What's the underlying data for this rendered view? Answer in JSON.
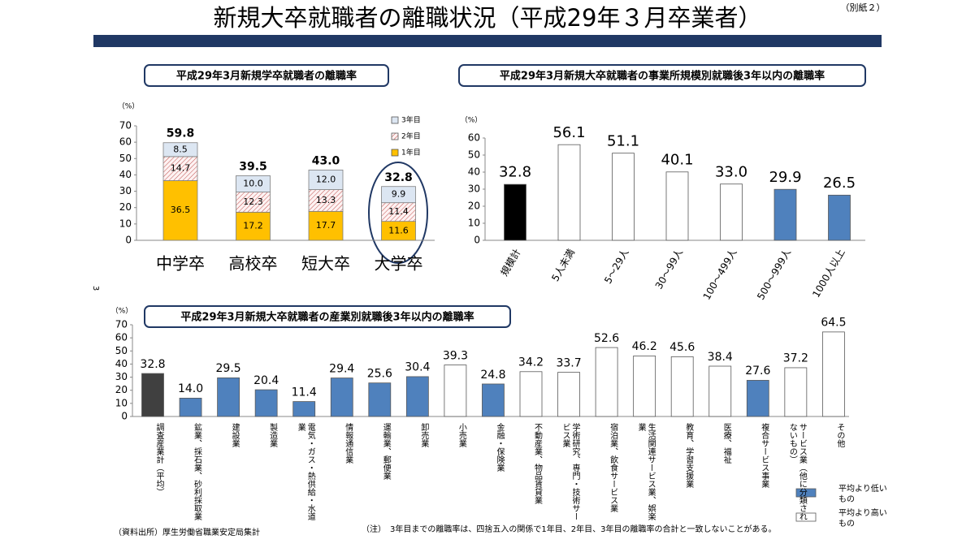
{
  "header": {
    "title": "新規大卒就職者の離職状況（平成29年３月卒業者）",
    "note": "（別紙２）",
    "page_number": "3"
  },
  "chart_data": [
    {
      "type": "stacked_bar",
      "title": "平成29年3月新規学卒就職者の離職率",
      "y_unit": "（%）",
      "categories": [
        "中学卒",
        "高校卒",
        "短大卒",
        "大学卒"
      ],
      "series": [
        {
          "name": "1年目",
          "color": "#ffc000",
          "values": [
            36.5,
            17.2,
            17.7,
            11.6
          ]
        },
        {
          "name": "2年目",
          "color": "#c0504d",
          "pattern": "hatch",
          "values": [
            14.7,
            12.3,
            13.3,
            11.4
          ]
        },
        {
          "name": "3年目",
          "color": "#dce6f2",
          "values": [
            8.5,
            10,
            12,
            9.9
          ],
          "value_labels": [
            "8.5",
            "10.0",
            "12.0",
            "9.9"
          ]
        }
      ],
      "totals": [
        59.8,
        39.5,
        43,
        32.8
      ],
      "total_labels": [
        "59.8",
        "39.5",
        "43.0",
        "32.8"
      ],
      "ylim": [
        0,
        70
      ],
      "yticks": [
        0,
        10,
        20,
        30,
        40,
        50,
        60,
        70
      ]
    },
    {
      "type": "bar",
      "title": "平成29年3月新規大卒就職者の事業所規模別就職後3年以内の離職率",
      "y_unit": "（%）",
      "categories": [
        "規模計",
        "5人未満",
        "5～29人",
        "30～99人",
        "100～499人",
        "500～999人",
        "1000人以上"
      ],
      "values": [
        32.8,
        56.1,
        51.1,
        40.1,
        33,
        29.9,
        26.5
      ],
      "value_labels": [
        "32.8",
        "56.1",
        "51.1",
        "40.1",
        "33.0",
        "29.9",
        "26.5"
      ],
      "colors": [
        "#000000",
        "#ffffff",
        "#ffffff",
        "#ffffff",
        "#ffffff",
        "#4f81bd",
        "#4f81bd"
      ],
      "ylim": [
        0,
        60
      ],
      "yticks": [
        0,
        10,
        20,
        30,
        40,
        50,
        60
      ]
    },
    {
      "type": "bar",
      "title": "平成29年3月新規大卒就職者の産業別就職後3年以内の離職率",
      "y_unit": "（%）",
      "categories": [
        "調査産業計（平均）",
        "鉱業、採石業、砂利採取業",
        "建設業",
        "製造業",
        "電気・ガス・熱供給・水道業",
        "情報通信業",
        "運輸業、郵便業",
        "卸売業",
        "小売業",
        "金融・保険業",
        "不動産業、物品賃貸業",
        "学術研究、専門・技術サービス業",
        "宿泊業、飲食サービス業",
        "生活関連サービス業、娯楽業",
        "教育、学習支援業",
        "医療、福祉",
        "複合サービス事業",
        "サービス業（他に分類されないもの）",
        "その他"
      ],
      "values": [
        32.8,
        14,
        29.5,
        20.4,
        11.4,
        29.4,
        25.6,
        30.4,
        39.3,
        24.8,
        34.2,
        33.7,
        52.6,
        46.2,
        45.6,
        38.4,
        27.6,
        37.2,
        64.5
      ],
      "value_labels": [
        "32.8",
        "14.0",
        "29.5",
        "20.4",
        "11.4",
        "29.4",
        "25.6",
        "30.4",
        "39.3",
        "24.8",
        "34.2",
        "33.7",
        "52.6",
        "46.2",
        "45.6",
        "38.4",
        "27.6",
        "37.2",
        "64.5"
      ],
      "colors": [
        "#404040",
        "#4f81bd",
        "#4f81bd",
        "#4f81bd",
        "#4f81bd",
        "#4f81bd",
        "#4f81bd",
        "#4f81bd",
        "#ffffff",
        "#4f81bd",
        "#ffffff",
        "#ffffff",
        "#ffffff",
        "#ffffff",
        "#ffffff",
        "#ffffff",
        "#4f81bd",
        "#ffffff",
        "#ffffff"
      ],
      "legend": [
        {
          "label": "平均より低いもの",
          "color": "#4f81bd"
        },
        {
          "label": "平均より高いもの",
          "color": "#ffffff"
        }
      ],
      "ylim": [
        0,
        70
      ],
      "yticks": [
        0,
        10,
        20,
        30,
        40,
        50,
        60,
        70
      ]
    }
  ],
  "footer": {
    "source": "（資料出所）厚生労働省職業安定局集計",
    "note": "（注）　3年目までの離職率は、四捨五入の関係で1年目、2年目、3年目の離職率の合計と一致しないことがある。"
  }
}
